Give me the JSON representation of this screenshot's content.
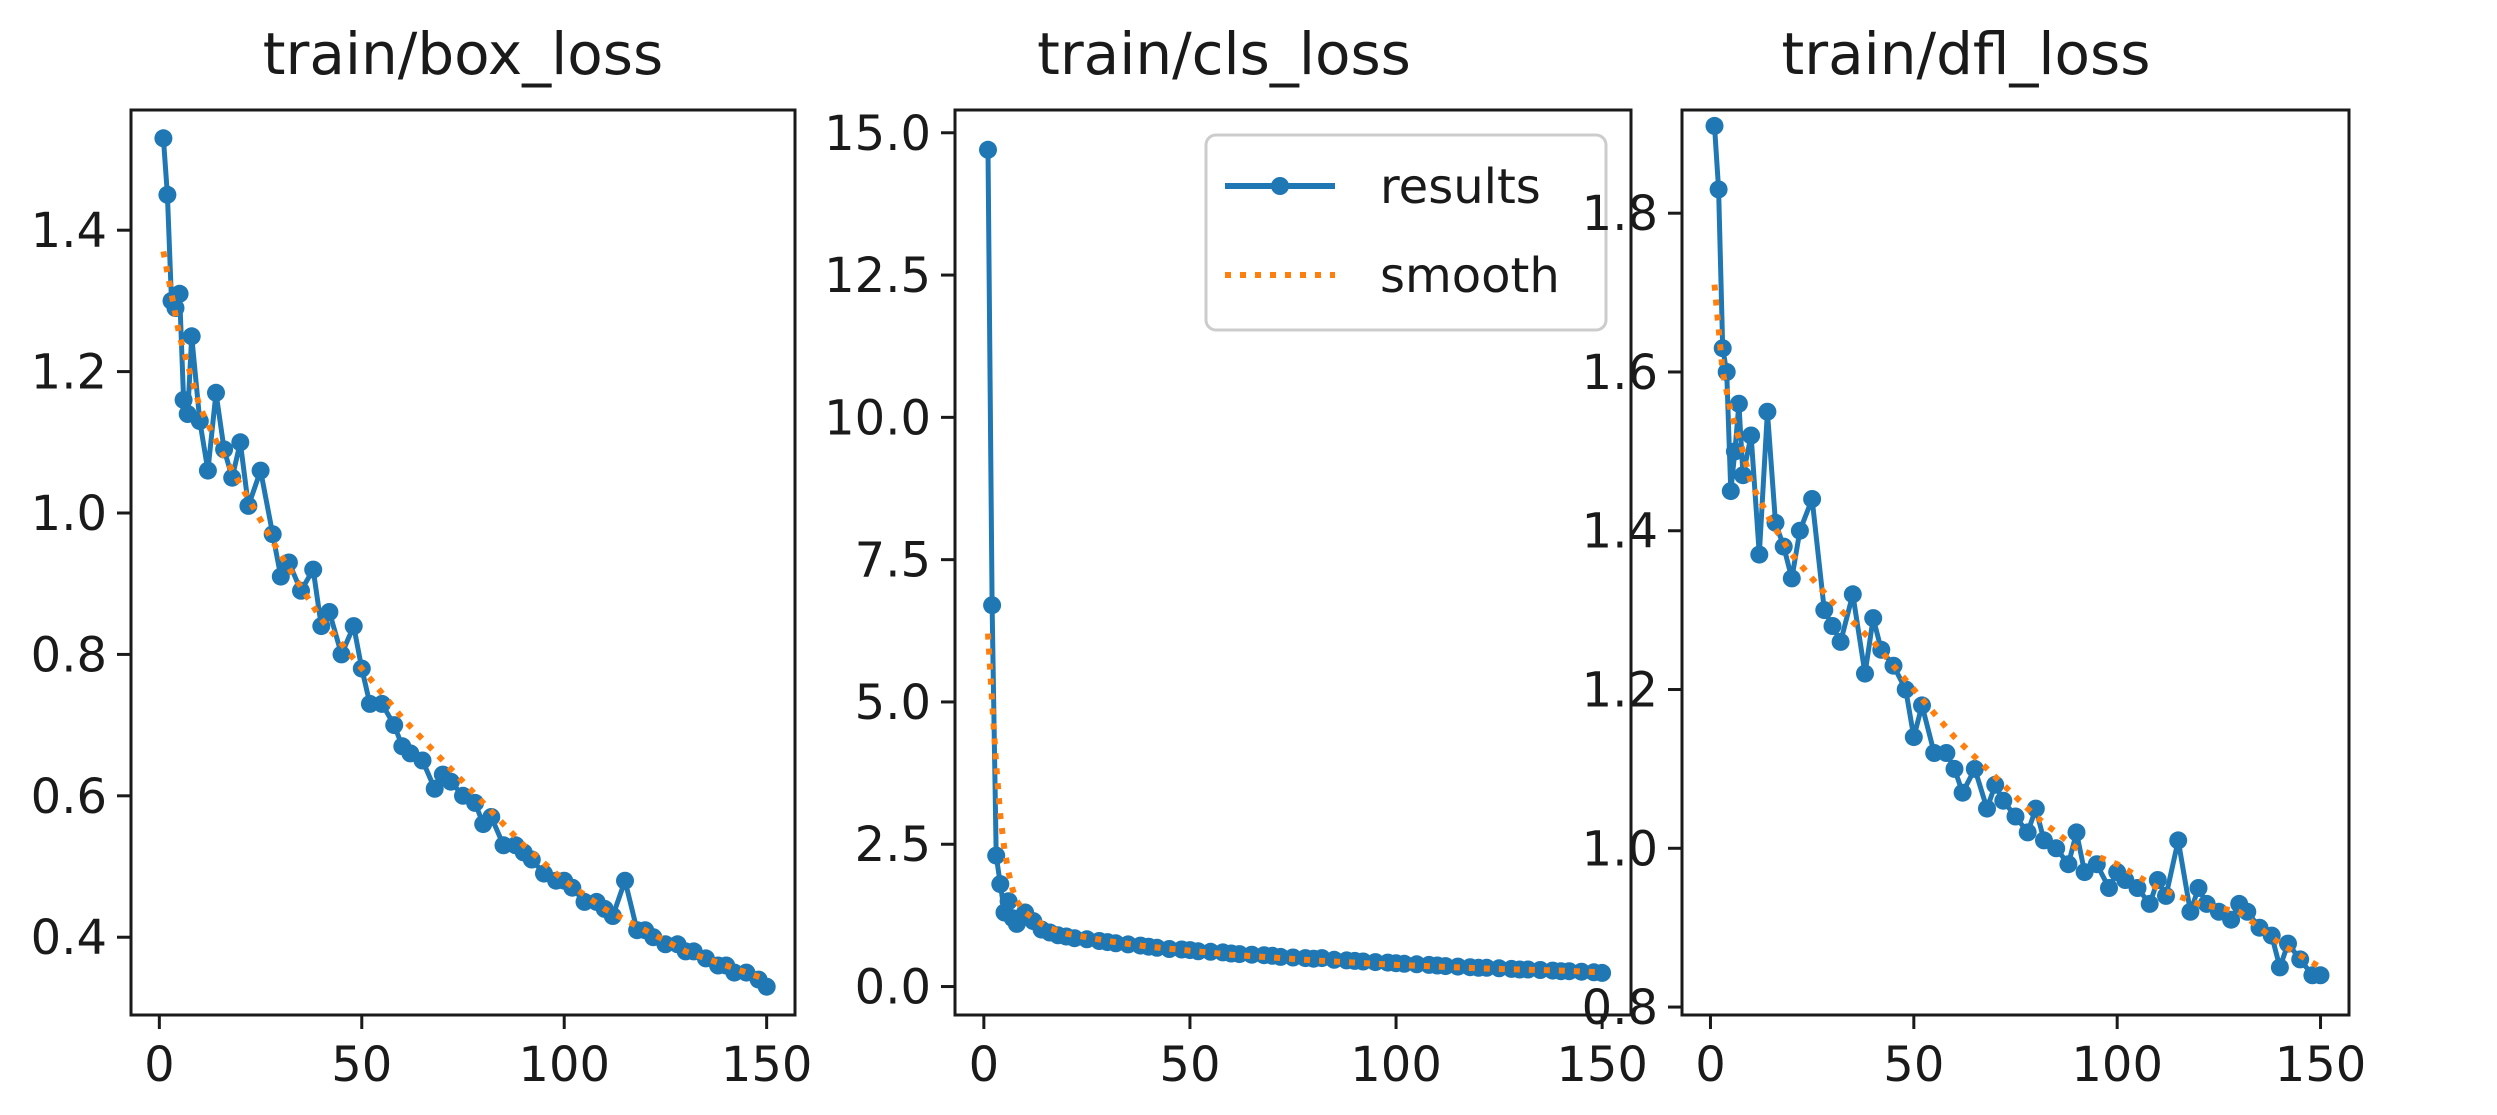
{
  "colors": {
    "results": "#1f77b4",
    "smooth": "#ff7f0e",
    "axes": "#1a1a1a"
  },
  "chart_data": [
    {
      "type": "line",
      "title": "train/box_loss",
      "xlim": [
        -7,
        157
      ],
      "ylim": [
        0.29,
        1.57
      ],
      "xticks": [
        0,
        50,
        100,
        150
      ],
      "yticks": [
        0.4,
        0.6,
        0.8,
        1.0,
        1.2,
        1.4
      ],
      "ytick_labels": [
        "0.4",
        "0.6",
        "0.8",
        "1.0",
        "1.2",
        "1.4"
      ],
      "legend": false,
      "series": [
        {
          "name": "results",
          "style": "line-markers",
          "x": [
            1,
            2,
            3,
            4,
            5,
            6,
            7,
            8,
            10,
            12,
            14,
            16,
            18,
            20,
            22,
            25,
            28,
            30,
            32,
            35,
            38,
            40,
            42,
            45,
            48,
            50,
            52,
            55,
            58,
            60,
            62,
            65,
            68,
            70,
            72,
            75,
            78,
            80,
            82,
            85,
            88,
            90,
            92,
            95,
            98,
            100,
            102,
            105,
            108,
            110,
            112,
            115,
            118,
            120,
            122,
            125,
            128,
            130,
            132,
            135,
            138,
            140,
            142,
            145,
            148,
            150
          ],
          "y": [
            1.53,
            1.45,
            1.3,
            1.29,
            1.31,
            1.16,
            1.14,
            1.25,
            1.13,
            1.06,
            1.17,
            1.09,
            1.05,
            1.1,
            1.01,
            1.06,
            0.97,
            0.91,
            0.93,
            0.89,
            0.92,
            0.84,
            0.86,
            0.8,
            0.84,
            0.78,
            0.73,
            0.73,
            0.7,
            0.67,
            0.66,
            0.65,
            0.61,
            0.63,
            0.62,
            0.6,
            0.59,
            0.56,
            0.57,
            0.53,
            0.53,
            0.52,
            0.51,
            0.49,
            0.48,
            0.48,
            0.47,
            0.45,
            0.45,
            0.44,
            0.43,
            0.48,
            0.41,
            0.41,
            0.4,
            0.39,
            0.39,
            0.38,
            0.38,
            0.37,
            0.36,
            0.36,
            0.35,
            0.35,
            0.34,
            0.33
          ]
        },
        {
          "name": "smooth",
          "style": "dotted",
          "x": [
            1,
            5,
            10,
            15,
            20,
            25,
            30,
            40,
            50,
            60,
            70,
            80,
            90,
            100,
            110,
            120,
            130,
            140,
            150
          ],
          "y": [
            1.37,
            1.25,
            1.15,
            1.09,
            1.04,
            0.99,
            0.94,
            0.85,
            0.78,
            0.71,
            0.65,
            0.59,
            0.53,
            0.48,
            0.44,
            0.41,
            0.38,
            0.36,
            0.34
          ]
        }
      ]
    },
    {
      "type": "line",
      "title": "train/cls_loss",
      "xlim": [
        -7,
        157
      ],
      "ylim": [
        -0.5,
        15.4
      ],
      "xticks": [
        0,
        50,
        100,
        150
      ],
      "yticks": [
        0.0,
        2.5,
        5.0,
        7.5,
        10.0,
        12.5,
        15.0
      ],
      "ytick_labels": [
        "0.0",
        "2.5",
        "5.0",
        "7.5",
        "10.0",
        "12.5",
        "15.0"
      ],
      "legend": true,
      "legend_position": "top-right",
      "series": [
        {
          "name": "results",
          "style": "line-markers",
          "x": [
            1,
            2,
            3,
            4,
            5,
            6,
            7,
            8,
            10,
            12,
            14,
            16,
            18,
            20,
            22,
            25,
            28,
            30,
            32,
            35,
            38,
            40,
            42,
            45,
            48,
            50,
            52,
            55,
            58,
            60,
            62,
            65,
            68,
            70,
            72,
            75,
            78,
            80,
            82,
            85,
            88,
            90,
            92,
            95,
            98,
            100,
            102,
            105,
            108,
            110,
            112,
            115,
            118,
            120,
            122,
            125,
            128,
            130,
            132,
            135,
            138,
            140,
            142,
            145,
            148,
            150
          ],
          "y": [
            14.7,
            6.7,
            2.3,
            1.8,
            1.3,
            1.5,
            1.2,
            1.1,
            1.3,
            1.15,
            1.0,
            0.95,
            0.9,
            0.88,
            0.85,
            0.83,
            0.8,
            0.78,
            0.76,
            0.74,
            0.72,
            0.7,
            0.68,
            0.66,
            0.65,
            0.64,
            0.62,
            0.61,
            0.6,
            0.58,
            0.57,
            0.56,
            0.55,
            0.54,
            0.52,
            0.51,
            0.5,
            0.49,
            0.5,
            0.47,
            0.46,
            0.45,
            0.44,
            0.43,
            0.42,
            0.41,
            0.4,
            0.39,
            0.38,
            0.37,
            0.36,
            0.35,
            0.34,
            0.33,
            0.33,
            0.32,
            0.31,
            0.3,
            0.3,
            0.29,
            0.28,
            0.27,
            0.27,
            0.26,
            0.25,
            0.24
          ]
        },
        {
          "name": "smooth",
          "style": "dotted",
          "x": [
            1,
            2,
            3,
            4,
            5,
            6,
            7,
            8,
            10,
            12,
            15,
            20,
            30,
            40,
            50,
            60,
            70,
            80,
            90,
            100,
            110,
            120,
            130,
            140,
            150
          ],
          "y": [
            6.2,
            5.0,
            3.9,
            3.0,
            2.4,
            2.0,
            1.7,
            1.5,
            1.3,
            1.2,
            1.05,
            0.93,
            0.8,
            0.7,
            0.63,
            0.56,
            0.51,
            0.46,
            0.42,
            0.38,
            0.35,
            0.32,
            0.3,
            0.28,
            0.25
          ]
        }
      ]
    },
    {
      "type": "line",
      "title": "train/dfl_loss",
      "xlim": [
        -7,
        157
      ],
      "ylim": [
        0.79,
        1.93
      ],
      "xticks": [
        0,
        50,
        100,
        150
      ],
      "yticks": [
        0.8,
        1.0,
        1.2,
        1.4,
        1.6,
        1.8
      ],
      "ytick_labels": [
        "0.8",
        "1.0",
        "1.2",
        "1.4",
        "1.6",
        "1.8"
      ],
      "legend": false,
      "series": [
        {
          "name": "results",
          "style": "line-markers",
          "x": [
            1,
            2,
            3,
            4,
            5,
            6,
            7,
            8,
            10,
            12,
            14,
            16,
            18,
            20,
            22,
            25,
            28,
            30,
            32,
            35,
            38,
            40,
            42,
            45,
            48,
            50,
            52,
            55,
            58,
            60,
            62,
            65,
            68,
            70,
            72,
            75,
            78,
            80,
            82,
            85,
            88,
            90,
            92,
            95,
            98,
            100,
            102,
            105,
            108,
            110,
            112,
            115,
            118,
            120,
            122,
            125,
            128,
            130,
            132,
            135,
            138,
            140,
            142,
            145,
            148,
            150
          ],
          "y": [
            1.91,
            1.83,
            1.63,
            1.6,
            1.45,
            1.5,
            1.56,
            1.47,
            1.52,
            1.37,
            1.55,
            1.41,
            1.38,
            1.34,
            1.4,
            1.44,
            1.3,
            1.28,
            1.26,
            1.32,
            1.22,
            1.29,
            1.25,
            1.23,
            1.2,
            1.14,
            1.18,
            1.12,
            1.12,
            1.1,
            1.07,
            1.1,
            1.05,
            1.08,
            1.06,
            1.04,
            1.02,
            1.05,
            1.01,
            1.0,
            0.98,
            1.02,
            0.97,
            0.98,
            0.95,
            0.97,
            0.96,
            0.95,
            0.93,
            0.96,
            0.94,
            1.01,
            0.92,
            0.95,
            0.93,
            0.92,
            0.91,
            0.93,
            0.92,
            0.9,
            0.89,
            0.85,
            0.88,
            0.86,
            0.84,
            0.84
          ]
        },
        {
          "name": "smooth",
          "style": "dotted",
          "x": [
            1,
            3,
            5,
            8,
            10,
            15,
            20,
            25,
            30,
            40,
            50,
            60,
            70,
            80,
            90,
            100,
            110,
            120,
            130,
            140,
            150
          ],
          "y": [
            1.71,
            1.6,
            1.55,
            1.5,
            1.46,
            1.41,
            1.37,
            1.34,
            1.31,
            1.26,
            1.2,
            1.14,
            1.09,
            1.04,
            1.0,
            0.98,
            0.95,
            0.93,
            0.92,
            0.88,
            0.85
          ]
        }
      ]
    }
  ]
}
